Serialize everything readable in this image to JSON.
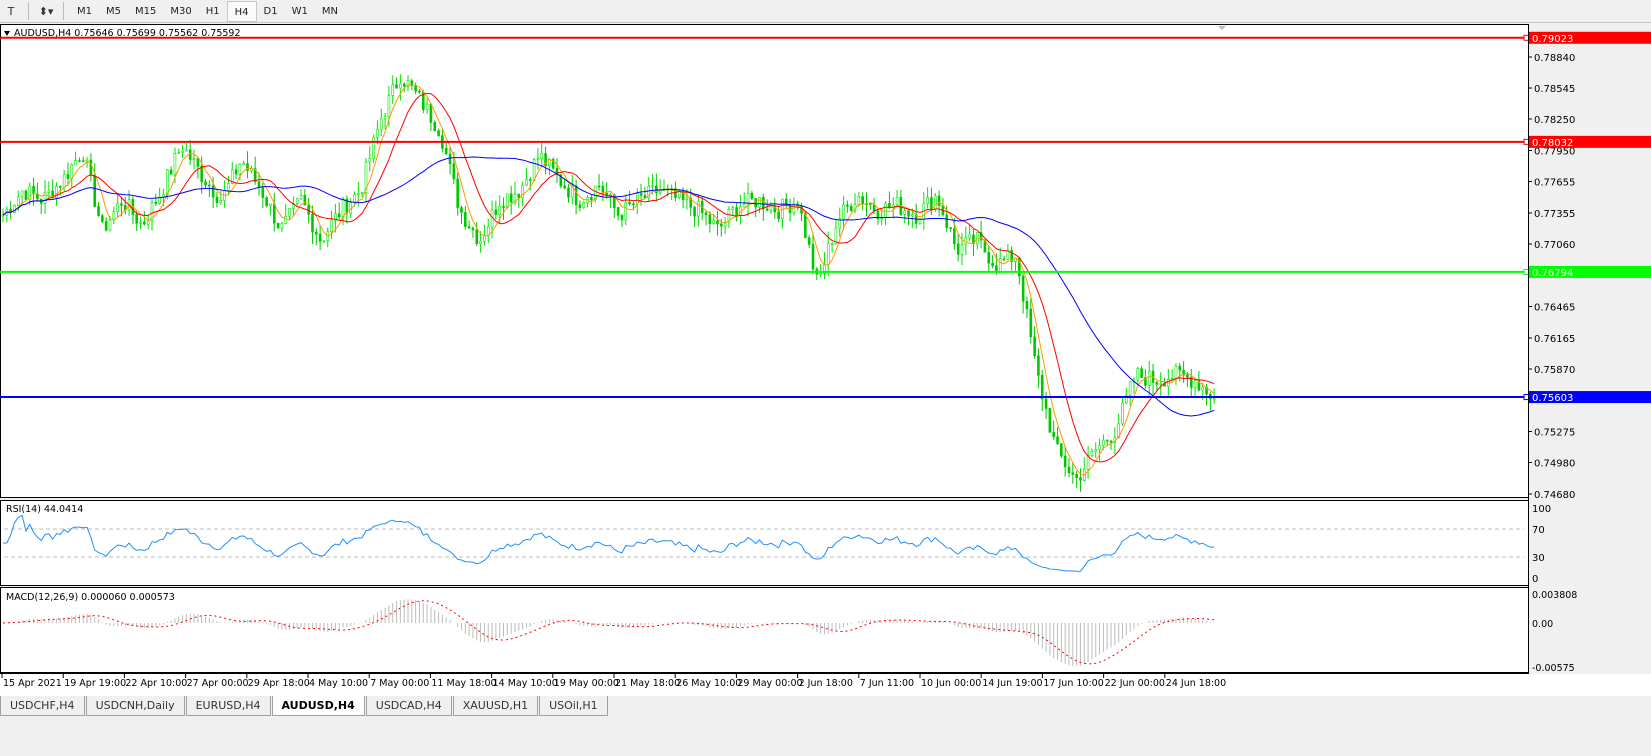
{
  "toolbar": {
    "timeframes": [
      "M1",
      "M5",
      "M15",
      "M30",
      "H1",
      "H4",
      "D1",
      "W1",
      "MN"
    ],
    "active": "H4"
  },
  "chart": {
    "title": "AUDUSD,H4  0.75646 0.75699 0.75562 0.75592",
    "colors": {
      "bull": "#00e600",
      "bear": "#00c800",
      "ma_fast": "#ff9900",
      "ma_mid": "#ff0000",
      "ma_slow": "#0000ff"
    },
    "price_ticks": [
      "0.78840",
      "0.78545",
      "0.78250",
      "0.77950",
      "0.77655",
      "0.77355",
      "0.77060",
      "0.76465",
      "0.76165",
      "0.75870",
      "0.75275",
      "0.74980",
      "0.74680"
    ],
    "hlines": [
      {
        "price": "0.79023",
        "color": "#ff0000"
      },
      {
        "price": "0.78032",
        "color": "#ff0000"
      },
      {
        "price": "0.76794",
        "color": "#00ff00"
      },
      {
        "price": "0.75603",
        "color": "#0000ff"
      }
    ],
    "time_labels": [
      "15 Apr 2021",
      "19 Apr 19:00",
      "22 Apr 10:00",
      "27 Apr 00:00",
      "29 Apr 18:00",
      "4 May 10:00",
      "7 May 00:00",
      "11 May 18:00",
      "14 May 10:00",
      "19 May 00:00",
      "21 May 18:00",
      "26 May 10:00",
      "29 May 00:00",
      "2 Jun 18:00",
      "7 Jun 11:00",
      "10 Jun 00:00",
      "14 Jun 19:00",
      "17 Jun 10:00",
      "22 Jun 00:00",
      "24 Jun 18:00"
    ],
    "closes": [
      0.77336,
      0.77574,
      0.77479,
      0.77669,
      0.77955,
      0.77193,
      0.77479,
      0.77241,
      0.77574,
      0.78002,
      0.77717,
      0.77479,
      0.77859,
      0.77574,
      0.77193,
      0.77479,
      0.77098,
      0.77383,
      0.77574,
      0.7824,
      0.78669,
      0.78431,
      0.78145,
      0.77383,
      0.77098,
      0.77479,
      0.77574,
      0.77907,
      0.77669,
      0.77479,
      0.77621,
      0.77336,
      0.77479,
      0.77574,
      0.77479,
      0.77383,
      0.77193,
      0.77431,
      0.77479,
      0.77383,
      0.77479,
      0.76669,
      0.77288,
      0.77526,
      0.77383,
      0.77431,
      0.77336,
      0.77526,
      0.77003,
      0.77098,
      0.7686,
      0.76955,
      0.7586,
      0.75099,
      0.74813,
      0.75099,
      0.75289,
      0.75813,
      0.75765,
      0.75813,
      0.75765,
      0.75592
    ]
  },
  "rsi": {
    "label": "RSI(14) 44.0414",
    "ticks": [
      "100",
      "70",
      "30",
      "0"
    ],
    "color": "#1e90ff"
  },
  "macd": {
    "label": "MACD(12,26,9) 0.000060 0.000573",
    "ticks": [
      "0.003808",
      "0.00",
      "-0.00575"
    ]
  },
  "tabs": [
    "USDCHF,H4",
    "USDCNH,Daily",
    "EURUSD,H4",
    "AUDUSD,H4",
    "USDCAD,H4",
    "XAUUSD,H1",
    "USOil,H1"
  ],
  "active_tab": "AUDUSD,H4"
}
